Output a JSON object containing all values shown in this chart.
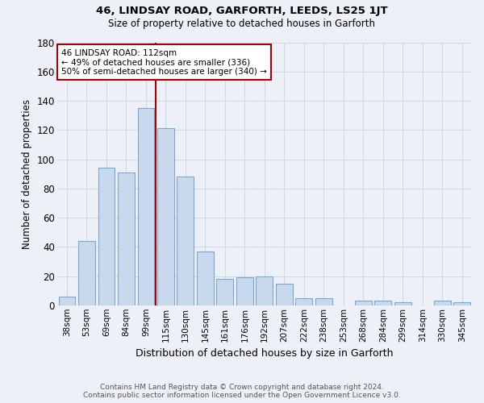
{
  "title": "46, LINDSAY ROAD, GARFORTH, LEEDS, LS25 1JT",
  "subtitle": "Size of property relative to detached houses in Garforth",
  "xlabel": "Distribution of detached houses by size in Garforth",
  "ylabel": "Number of detached properties",
  "categories": [
    "38sqm",
    "53sqm",
    "69sqm",
    "84sqm",
    "99sqm",
    "115sqm",
    "130sqm",
    "145sqm",
    "161sqm",
    "176sqm",
    "192sqm",
    "207sqm",
    "222sqm",
    "238sqm",
    "253sqm",
    "268sqm",
    "284sqm",
    "299sqm",
    "314sqm",
    "330sqm",
    "345sqm"
  ],
  "values": [
    6,
    44,
    94,
    91,
    135,
    121,
    88,
    37,
    18,
    19,
    20,
    15,
    5,
    5,
    0,
    3,
    3,
    2,
    0,
    3,
    2
  ],
  "bar_color": "#c8d9ee",
  "bar_edge_color": "#7aa8d0",
  "ylim": [
    0,
    180
  ],
  "yticks": [
    0,
    20,
    40,
    60,
    80,
    100,
    120,
    140,
    160,
    180
  ],
  "vline_x_index": 4,
  "vline_color": "#aa0000",
  "annotation_text": "46 LINDSAY ROAD: 112sqm\n← 49% of detached houses are smaller (336)\n50% of semi-detached houses are larger (340) →",
  "annotation_box_color": "white",
  "annotation_box_edge_color": "#aa0000",
  "footer_line1": "Contains HM Land Registry data © Crown copyright and database right 2024.",
  "footer_line2": "Contains public sector information licensed under the Open Government Licence v3.0.",
  "background_color": "#edf1f7",
  "grid_color": "#d0d8e8"
}
